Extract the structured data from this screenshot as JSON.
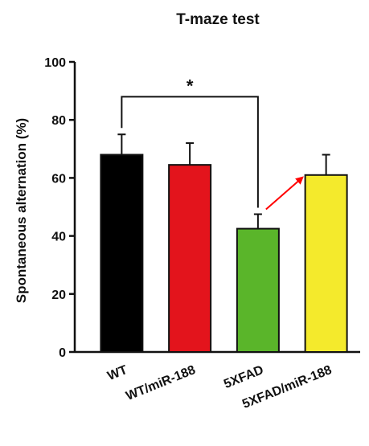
{
  "chart_data": {
    "type": "bar",
    "title": "T-maze test",
    "xlabel": "",
    "ylabel": "Spontaneous alternation (%)",
    "ylim": [
      0,
      100
    ],
    "yticks": [
      0,
      20,
      40,
      60,
      80,
      100
    ],
    "categories": [
      "WT",
      "WT/miR-188",
      "5XFAD",
      "5XFAD/miR-188"
    ],
    "values": [
      68,
      64.5,
      42.5,
      61
    ],
    "errors": [
      7,
      7.5,
      5,
      7
    ],
    "colors": [
      "#000000",
      "#e3141c",
      "#5ab52a",
      "#f4ea2c"
    ],
    "significance": [
      {
        "from": "WT",
        "to": "5XFAD",
        "label": "*"
      }
    ],
    "annotations": [
      {
        "type": "arrow",
        "color": "#ff0000",
        "from": "5XFAD",
        "to": "5XFAD/miR-188"
      }
    ],
    "grid": false
  }
}
